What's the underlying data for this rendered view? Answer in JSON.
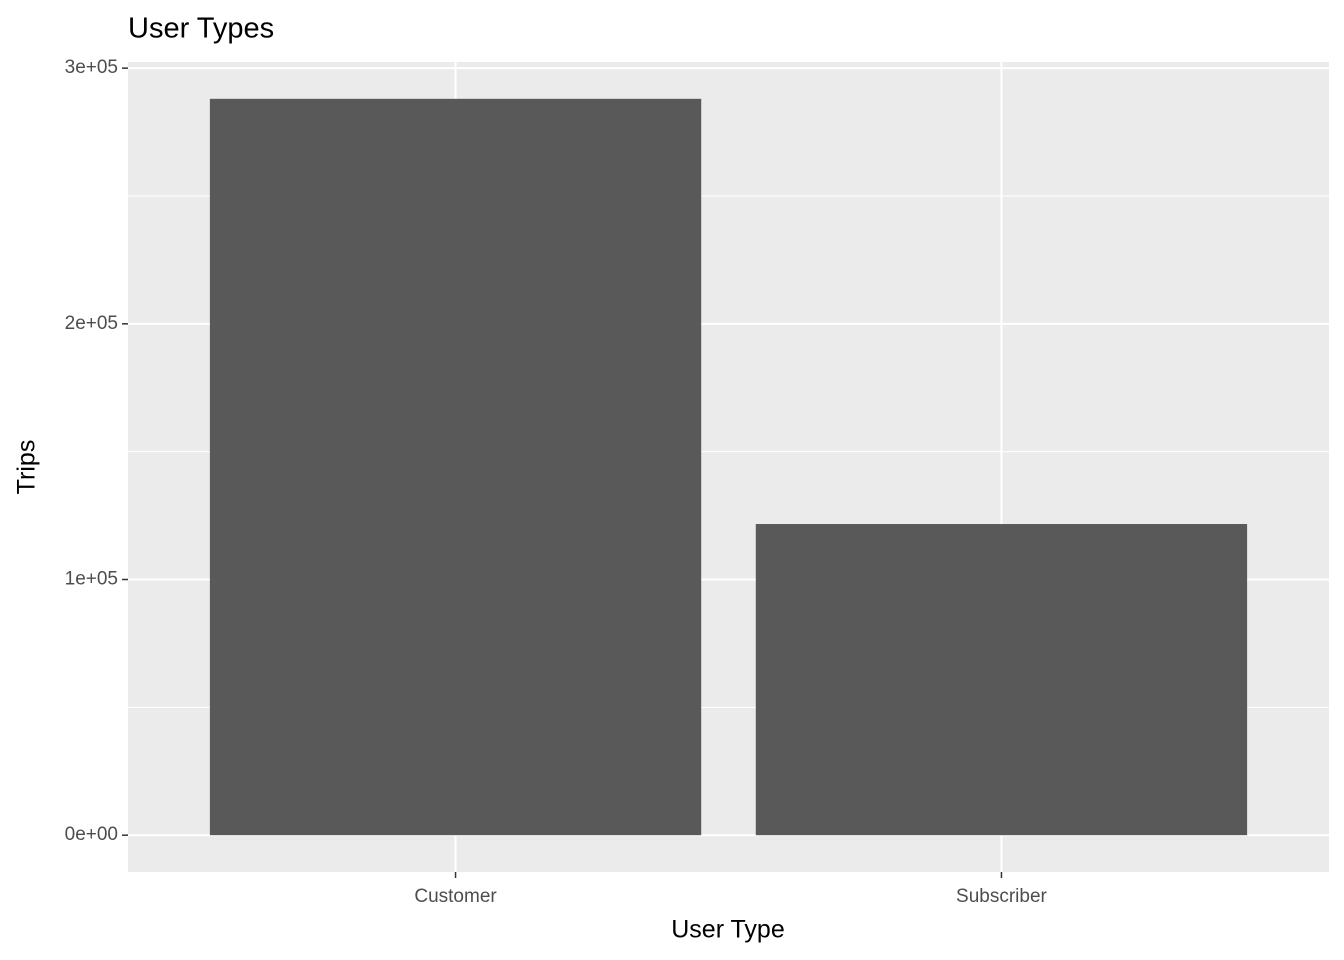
{
  "chart_data": {
    "type": "bar",
    "title": "User Types",
    "x_label": "User Type",
    "y_label": "Trips",
    "categories": [
      "Customer",
      "Subscriber"
    ],
    "values": [
      288000,
      121700
    ],
    "color": "#595959",
    "ylim": [
      -14400,
      302400
    ],
    "yticks": [
      {
        "value": 0,
        "label": "0e+00"
      },
      {
        "value": 100000,
        "label": "1e+05"
      },
      {
        "value": 200000,
        "label": "2e+05"
      },
      {
        "value": 300000,
        "label": "3e+05"
      }
    ],
    "minor_yticks": [
      50000,
      150000,
      250000
    ],
    "grid": true
  }
}
